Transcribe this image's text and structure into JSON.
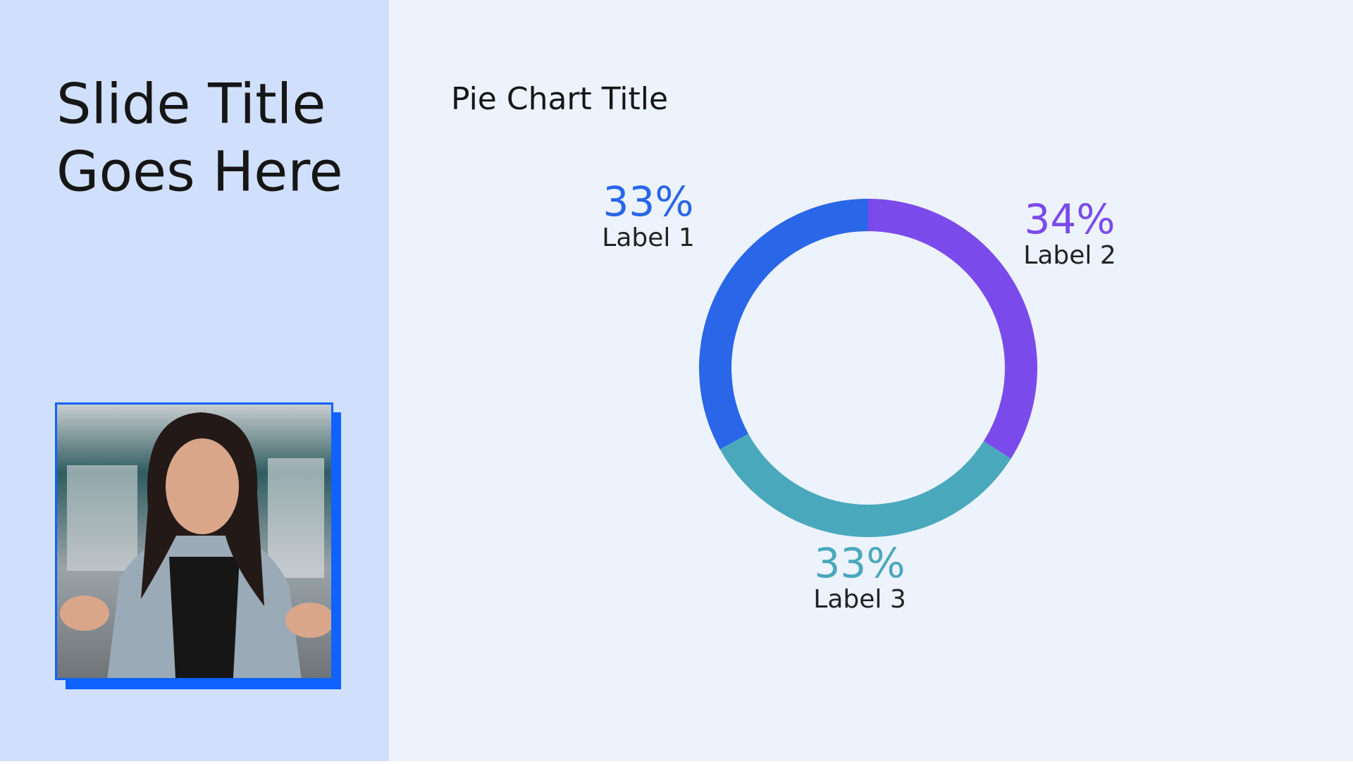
{
  "slide": {
    "title_lines": [
      "Slide Title",
      "Goes Here"
    ]
  },
  "chart_data": {
    "type": "pie",
    "title": "Pie Chart Title",
    "categories": [
      "Label 1",
      "Label 2",
      "Label 3"
    ],
    "values": [
      33,
      34,
      33
    ],
    "value_labels": [
      "33%",
      "34%",
      "33%"
    ],
    "colors": [
      "#2966e8",
      "#7b4aea",
      "#4aa8bc"
    ]
  }
}
